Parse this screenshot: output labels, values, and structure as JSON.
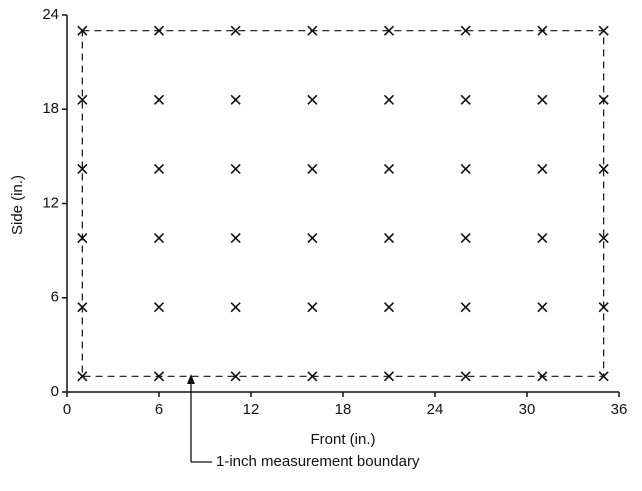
{
  "chart_data": {
    "type": "scatter",
    "x_label": "Front (in.)",
    "y_label": "Side (in.)",
    "annotation": "1-inch measurement boundary",
    "boundary": {
      "x": [
        1,
        35
      ],
      "y": [
        1,
        23
      ]
    },
    "marker": "x",
    "color": "#111111",
    "x": [
      1,
      6,
      11,
      16,
      21,
      26,
      31,
      35,
      1,
      6,
      11,
      16,
      21,
      26,
      31,
      35,
      1,
      6,
      11,
      16,
      21,
      26,
      31,
      35,
      1,
      6,
      11,
      16,
      21,
      26,
      31,
      35,
      1,
      6,
      11,
      16,
      21,
      26,
      31,
      35,
      1,
      6,
      11,
      16,
      21,
      26,
      31,
      35
    ],
    "values": [
      23,
      23,
      23,
      23,
      23,
      23,
      23,
      23,
      18.6,
      18.6,
      18.6,
      18.6,
      18.6,
      18.6,
      18.6,
      18.6,
      14.2,
      14.2,
      14.2,
      14.2,
      14.2,
      14.2,
      14.2,
      14.2,
      9.8,
      9.8,
      9.8,
      9.8,
      9.8,
      9.8,
      9.8,
      9.8,
      5.4,
      5.4,
      5.4,
      5.4,
      5.4,
      5.4,
      5.4,
      5.4,
      1,
      1,
      1,
      1,
      1,
      1,
      1,
      1
    ],
    "xlim": [
      0,
      36
    ],
    "xticks": [
      0,
      6,
      12,
      18,
      24,
      30,
      36
    ],
    "ylim": [
      0,
      24
    ],
    "yticks": [
      0,
      6,
      12,
      18,
      24
    ]
  }
}
